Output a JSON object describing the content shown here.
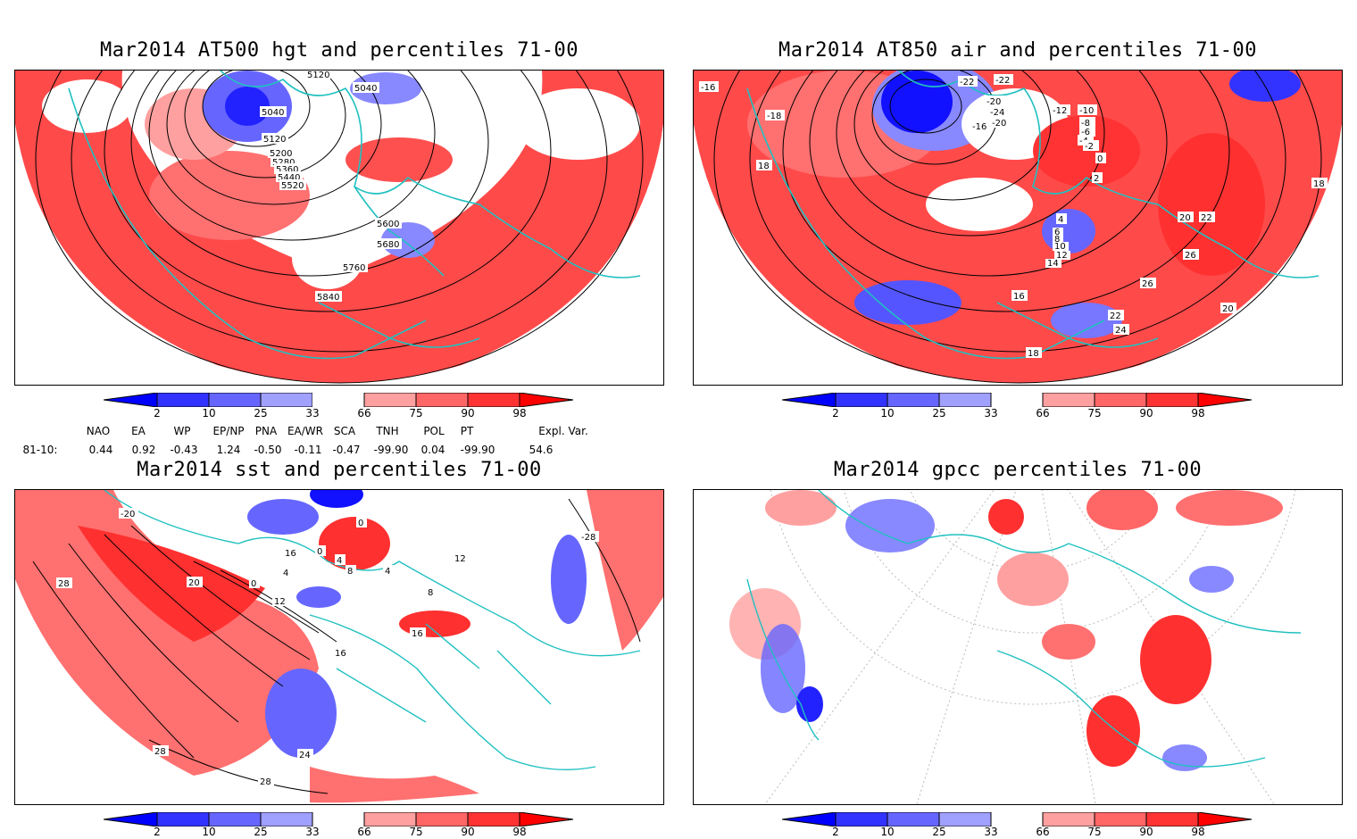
{
  "panels": [
    {
      "id": "hgt500",
      "title": "Mar2014 AT500 hgt and percentiles 71-00",
      "contour_labels": [
        "5120",
        "5040",
        "5040",
        "5120",
        "5200",
        "5280",
        "5360",
        "5440",
        "5520",
        "5600",
        "5680",
        "5760",
        "5840"
      ]
    },
    {
      "id": "air850",
      "title": "Mar2014 AT850 air and percentiles 71-00",
      "contour_labels": [
        "-16",
        "-18",
        "-22",
        "-22",
        "-24",
        "-20",
        "-12",
        "-10",
        "-8",
        "-6",
        "-4",
        "-2",
        "0",
        "2",
        "4",
        "6",
        "8",
        "10",
        "12",
        "14",
        "16",
        "18",
        "18",
        "20",
        "22",
        "24",
        "26",
        "-16",
        "-20",
        "18",
        "20",
        "22",
        "26"
      ]
    },
    {
      "id": "sst",
      "title": "Mar2014 sst and percentiles 71-00",
      "contour_labels": [
        "-20",
        "28",
        "20",
        "0",
        "4",
        "12",
        "16",
        "24",
        "28",
        "28",
        "-28",
        "0",
        "0",
        "4",
        "8",
        "4",
        "16",
        "8",
        "12",
        "16"
      ]
    },
    {
      "id": "gpcc",
      "title": "Mar2014 gpcc percentiles 71-00",
      "contour_labels": []
    }
  ],
  "colorbar": {
    "labels": [
      "2",
      "10",
      "25",
      "33",
      "66",
      "75",
      "90",
      "98"
    ],
    "colors": [
      "#0000ff",
      "#3333ff",
      "#6666ff",
      "#a0a0ff",
      "#ffffff",
      "#ffa0a0",
      "#ff6666",
      "#ff3333",
      "#ff0000"
    ]
  },
  "indices": {
    "headers": [
      "NAO",
      "EA",
      "WP",
      "EP/NP",
      "PNA",
      "EA/WR",
      "SCA",
      "TNH",
      "POL",
      "PT",
      "Expl. Var."
    ],
    "row_label": "81-10:",
    "values": [
      "0.44",
      "0.92",
      "-0.43",
      "1.24",
      "-0.50",
      "-0.11",
      "-0.47",
      "-99.90",
      "0.04",
      "-99.90",
      "54.6"
    ]
  },
  "style": {
    "coast_color": "#20c0c0",
    "red": "#ff3333",
    "blue": "#3333ff"
  }
}
